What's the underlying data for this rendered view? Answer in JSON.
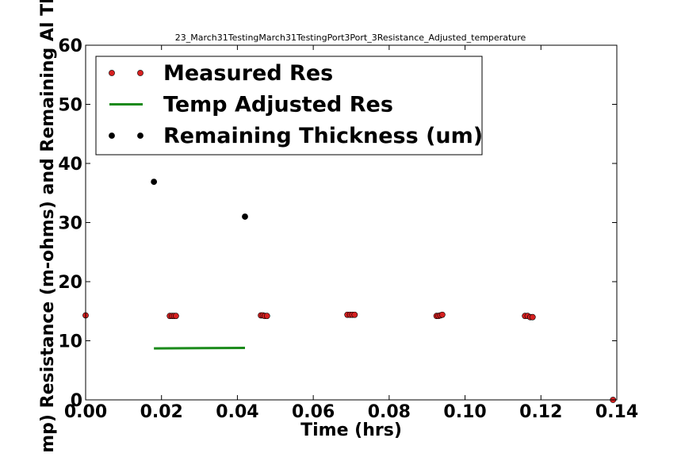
{
  "chart_data": {
    "type": "scatter",
    "title": "23_March31TestingMarch31TestingPort3Port_3Resistance_Adjusted_temperature",
    "xlabel": "Time (hrs)",
    "ylabel": "mp) Resistance (m-ohms) and Remaining Al Th",
    "xlim": [
      0.0,
      0.14
    ],
    "ylim": [
      0,
      60
    ],
    "xticks": [
      "0.00",
      "0.02",
      "0.04",
      "0.06",
      "0.08",
      "0.10",
      "0.12",
      "0.14"
    ],
    "yticks": [
      "0",
      "10",
      "20",
      "30",
      "40",
      "50",
      "60"
    ],
    "grid": false,
    "legend_position": "top-left",
    "series": [
      {
        "name": "Measured Res",
        "kind": "scatter",
        "color": "#d62020",
        "x": [
          0.0,
          0.0222,
          0.0228,
          0.0233,
          0.0238,
          0.0462,
          0.0467,
          0.0472,
          0.0478,
          0.069,
          0.0697,
          0.0703,
          0.0709,
          0.0925,
          0.093,
          0.0935,
          0.094,
          0.1158,
          0.1165,
          0.1172,
          0.1178,
          0.139
        ],
        "y": [
          14.3,
          14.2,
          14.2,
          14.2,
          14.2,
          14.3,
          14.3,
          14.2,
          14.2,
          14.4,
          14.4,
          14.4,
          14.4,
          14.2,
          14.2,
          14.3,
          14.4,
          14.2,
          14.2,
          14.0,
          14.0,
          0
        ]
      },
      {
        "name": "Temp Adjusted Res",
        "kind": "line",
        "color": "#1a8a1a",
        "x": [
          0.018,
          0.042
        ],
        "y": [
          8.7,
          8.8
        ]
      },
      {
        "name": "Remaining Thickness (um)",
        "kind": "scatter",
        "color": "#000000",
        "x": [
          0.018,
          0.042
        ],
        "y": [
          36.9,
          31.0
        ]
      }
    ]
  }
}
